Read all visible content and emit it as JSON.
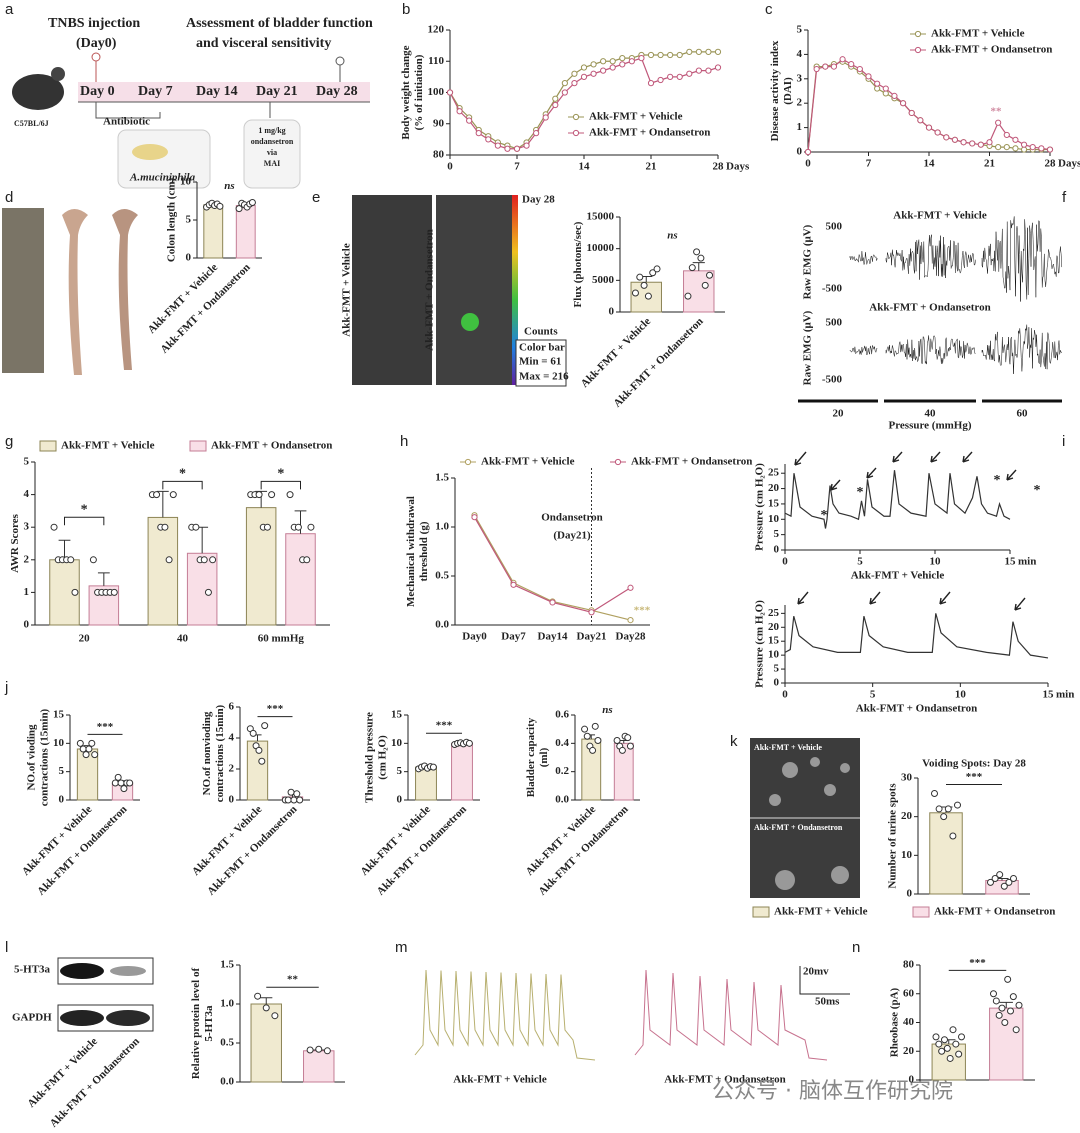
{
  "panel_letters": [
    "a",
    "b",
    "c",
    "d",
    "e",
    "f",
    "g",
    "h",
    "i",
    "j",
    "k",
    "l",
    "m",
    "n"
  ],
  "texts": {
    "a": [
      "TNBS injection",
      "(Day0)",
      "Assessment of bladder function",
      "and visceral sensitivity",
      "Day 0",
      "Day 7",
      "Day 14",
      "Day 21",
      "Day 28",
      "C57BL/6J",
      "Antibiotic",
      "A.muciniphila",
      "1 mg/kg",
      "ondansetron",
      "via",
      "MAI"
    ],
    "e": [
      "Akk-FMT + Vehicle",
      "Akk-FMT + Ondansetron",
      "Day 28",
      "Counts",
      "Color bar",
      "Min = 61",
      "Max = 216"
    ],
    "f": [
      "Akk-FMT + Vehicle",
      "Raw EMG (μV)",
      "500",
      "-500",
      "Akk-FMT + Ondansetron",
      "Raw EMG (μV)",
      "500",
      "-500",
      "20",
      "40",
      "60",
      "Pressure (mmHg)"
    ],
    "i": [
      "*",
      "*",
      "*",
      "*"
    ],
    "k": [
      "Akk-FMT + Vehicle",
      "Akk-FMT + Ondansetron"
    ],
    "l": [
      "5-HT3a",
      "GAPDH",
      "Akk-FMT + Vehicle",
      "Akk-FMT + Ondansetron"
    ],
    "m": [
      "20mv",
      "50ms",
      "Akk-FMT + Vehicle",
      "Akk-FMT + Ondansetron"
    ],
    "watermark": "公众号 · 脑体互作研究院"
  },
  "chart_data": [
    {
      "type": "line",
      "ylabel": [
        "Body weight change",
        "(% of initiation)"
      ],
      "xlabel": "Days",
      "x": [
        0,
        1,
        2,
        3,
        4,
        5,
        6,
        7,
        8,
        9,
        10,
        11,
        12,
        13,
        14,
        15,
        16,
        17,
        18,
        19,
        20,
        21,
        22,
        23,
        24,
        25,
        26,
        27,
        28
      ],
      "xlim": [
        0,
        28
      ],
      "xticks": [
        0,
        7,
        14,
        21,
        28
      ],
      "ylim": [
        80,
        120
      ],
      "yticks": [
        80,
        90,
        100,
        110,
        120
      ],
      "markers": true,
      "legend": "lower right",
      "series": [
        {
          "name": "Akk-FMT + Vehicle",
          "color": "#9a9456",
          "values": [
            100,
            95,
            92,
            88,
            86,
            84,
            83,
            82,
            84,
            88,
            93,
            98,
            103,
            106,
            108,
            109,
            110,
            110,
            111,
            111,
            112,
            112,
            112,
            112,
            112,
            113,
            113,
            113,
            113
          ]
        },
        {
          "name": "Akk-FMT + Ondansetron",
          "color": "#c0587a",
          "values": [
            100,
            94,
            91,
            87,
            85,
            83,
            82,
            82,
            83,
            87,
            92,
            96,
            100,
            103,
            105,
            106,
            107,
            108,
            109,
            110,
            111,
            103,
            104,
            105,
            105,
            106,
            107,
            107,
            108
          ]
        }
      ]
    },
    {
      "type": "line",
      "ylabel": [
        "Disease activity index",
        "(DAI)"
      ],
      "xlabel": "Days",
      "x": [
        0,
        1,
        2,
        3,
        4,
        5,
        6,
        7,
        8,
        9,
        10,
        11,
        12,
        13,
        14,
        15,
        16,
        17,
        18,
        19,
        20,
        21,
        22,
        23,
        24,
        25,
        26,
        27,
        28
      ],
      "xlim": [
        0,
        28
      ],
      "xticks": [
        0,
        7,
        14,
        21,
        28
      ],
      "ylim": [
        0,
        5
      ],
      "yticks": [
        0,
        1,
        2,
        3,
        4,
        5
      ],
      "markers": true,
      "legend": "upper right",
      "annotations": [
        "**"
      ],
      "series": [
        {
          "name": "Akk-FMT + Vehicle",
          "color": "#9a9456",
          "values": [
            0,
            3.5,
            3.5,
            3.6,
            3.7,
            3.5,
            3.3,
            3.0,
            2.6,
            2.4,
            2.2,
            2.0,
            1.6,
            1.3,
            1.0,
            0.8,
            0.6,
            0.5,
            0.4,
            0.35,
            0.3,
            0.25,
            0.2,
            0.2,
            0.15,
            0.1,
            0.1,
            0.1,
            0.1
          ]
        },
        {
          "name": "Akk-FMT + Ondansetron",
          "color": "#c0587a",
          "values": [
            0,
            3.4,
            3.5,
            3.5,
            3.8,
            3.6,
            3.4,
            3.1,
            2.8,
            2.6,
            2.3,
            2.0,
            1.6,
            1.3,
            1.0,
            0.8,
            0.6,
            0.5,
            0.4,
            0.35,
            0.3,
            0.4,
            1.2,
            0.7,
            0.5,
            0.3,
            0.2,
            0.15,
            0.1
          ]
        }
      ]
    },
    {
      "type": "bar",
      "ylabel": [
        "Colon length (cm)"
      ],
      "categories": [
        "Akk-FMT + Vehicle",
        "Akk-FMT + Ondansetron"
      ],
      "values": [
        7.0,
        6.9
      ],
      "errors": [
        0.15,
        0.2
      ],
      "points": [
        [
          6.7,
          7.0,
          7.2,
          6.9,
          7.1,
          6.8
        ],
        [
          6.5,
          7.2,
          7.0,
          6.7,
          7.1,
          7.3
        ]
      ],
      "ylim": [
        0,
        10
      ],
      "yticks": [
        0,
        5,
        10
      ],
      "significance": "ns",
      "colors": [
        "#f0ead0",
        "#f9dfe7"
      ],
      "edge_colors": [
        "#8c8455",
        "#c47d95"
      ]
    },
    {
      "type": "bar",
      "ylabel": [
        "Flux (photons/sec)"
      ],
      "categories": [
        "Akk-FMT + Vehicle",
        "Akk-FMT + Ondansetron"
      ],
      "values": [
        4700,
        6500
      ],
      "errors": [
        900,
        1300
      ],
      "points": [
        [
          3000,
          5500,
          4200,
          2500,
          6200,
          6800
        ],
        [
          2500,
          7000,
          9500,
          8500,
          4200,
          5800
        ]
      ],
      "ylim": [
        0,
        15000
      ],
      "yticks": [
        0,
        5000,
        10000,
        15000
      ],
      "significance": "ns",
      "colors": [
        "#f0ead0",
        "#f9dfe7"
      ],
      "edge_colors": [
        "#8c8455",
        "#c47d95"
      ]
    },
    {
      "type": "grouped_bar",
      "ylabel": [
        "AWR Scores"
      ],
      "categories": [
        "20",
        "40",
        "60 mmHg"
      ],
      "ylim": [
        0,
        5
      ],
      "yticks": [
        0,
        1,
        2,
        3,
        4,
        5
      ],
      "legend": "top",
      "significance": [
        "*",
        "*",
        "*"
      ],
      "series": [
        {
          "name": "Akk-FMT + Vehicle",
          "color": "#f0ead0",
          "edge_color": "#8c8455",
          "values": [
            2.0,
            3.3,
            3.6
          ],
          "errors": [
            0.6,
            0.8,
            0.5
          ],
          "points": [
            [
              3,
              2,
              2,
              2,
              2,
              1
            ],
            [
              4,
              4,
              3,
              3,
              2,
              4
            ],
            [
              4,
              4,
              4,
              3,
              3,
              4
            ]
          ]
        },
        {
          "name": "Akk-FMT + Ondansetron",
          "color": "#f9dfe7",
          "edge_color": "#c47d95",
          "values": [
            1.2,
            2.2,
            2.8
          ],
          "errors": [
            0.4,
            0.8,
            0.7
          ],
          "points": [
            [
              2,
              1,
              1,
              1,
              1,
              1
            ],
            [
              3,
              3,
              2,
              2,
              1,
              2
            ],
            [
              4,
              3,
              3,
              2,
              2,
              3
            ]
          ]
        }
      ]
    },
    {
      "type": "line",
      "ylabel": [
        "Mechanical withdrawal",
        "threshold (g)"
      ],
      "categories": [
        "Day0",
        "Day7",
        "Day14",
        "Day21",
        "Day28"
      ],
      "ylim": [
        0,
        1.5
      ],
      "yticks": [
        {
          "value": 0,
          "label": "0.0"
        },
        0.5,
        {
          "value": 1,
          "label": "1.0"
        },
        1.5
      ],
      "markers": true,
      "legend": "top",
      "vline_at": "Day21",
      "annotations": [
        "Ondansetron",
        "(Day21)",
        "***"
      ],
      "series": [
        {
          "name": "Akk-FMT + Vehicle",
          "color": "#b0a060",
          "values": [
            1.12,
            0.43,
            0.24,
            0.15,
            0.05
          ]
        },
        {
          "name": "Akk-FMT + Ondansetron",
          "color": "#c0587a",
          "values": [
            1.1,
            0.41,
            0.23,
            0.13,
            0.38
          ]
        }
      ]
    },
    {
      "type": "line",
      "ylabel": [
        "Pressure (cm H₂O)"
      ],
      "xlabel": "min",
      "caption": "Akk-FMT + Vehicle",
      "x": [
        0,
        0.4,
        0.6,
        1.0,
        1.8,
        2.6,
        2.7,
        2.8,
        3.0,
        3.2,
        3.6,
        4.4,
        4.9,
        5.1,
        5.3,
        5.5,
        5.8,
        6.6,
        7.0,
        7.3,
        7.6,
        8.4,
        9.4,
        9.6,
        10.0,
        10.8,
        11.0,
        11.3,
        12.0,
        12.5,
        12.8,
        13.1,
        13.5,
        14.1,
        14.3,
        14.6,
        15.0
      ],
      "xlim": [
        0,
        15
      ],
      "xticks": [
        0,
        5,
        10,
        15
      ],
      "ylim": [
        0,
        28
      ],
      "yticks": [
        0,
        5,
        10,
        15,
        20,
        25
      ],
      "series": [
        {
          "color": "#333333",
          "values": [
            12,
            11,
            25,
            14,
            11,
            10,
            7,
            10,
            21,
            15,
            12,
            11,
            10,
            16,
            11,
            23,
            14,
            11,
            11,
            26,
            15,
            12,
            11,
            25,
            15,
            12,
            25,
            15,
            12,
            17,
            24,
            15,
            12,
            11,
            15,
            11,
            10
          ]
        }
      ]
    },
    {
      "type": "line",
      "ylabel": [
        "Pressure (cm H₂O)"
      ],
      "xlabel": "min",
      "caption": "Akk-FMT + Ondansetron",
      "x": [
        0,
        0.3,
        0.5,
        0.8,
        1.6,
        3,
        4.3,
        4.5,
        4.8,
        5.6,
        7,
        8.4,
        8.6,
        8.9,
        9.8,
        11.5,
        12.8,
        13.0,
        13.3,
        14.0,
        15.0
      ],
      "xlim": [
        0,
        15
      ],
      "xticks": [
        0,
        5,
        10,
        15
      ],
      "ylim": [
        0,
        28
      ],
      "yticks": [
        0,
        5,
        10,
        15,
        20,
        25
      ],
      "series": [
        {
          "color": "#333333",
          "values": [
            11,
            12,
            24,
            17,
            13,
            11,
            11,
            24,
            17,
            13,
            11,
            11,
            25,
            18,
            13,
            11,
            10,
            22,
            15,
            10,
            9
          ]
        }
      ]
    },
    {
      "type": "bar",
      "ylabel": [
        "NO.of vioding",
        "contractions (15min)"
      ],
      "categories": [
        "Akk-FMT + Vehicle",
        "Akk-FMT + Ondansetron"
      ],
      "values": [
        9,
        3
      ],
      "errors": [
        0.6,
        0.4
      ],
      "points": [
        [
          10,
          9,
          8,
          9,
          10,
          8
        ],
        [
          3,
          4,
          3,
          2,
          3,
          3
        ]
      ],
      "ylim": [
        0,
        15
      ],
      "yticks": [
        0,
        5,
        10,
        15
      ],
      "significance": "***",
      "colors": [
        "#f0ead0",
        "#f9dfe7"
      ],
      "edge_colors": [
        "#8c8455",
        "#c47d95"
      ]
    },
    {
      "type": "bar",
      "ylabel": [
        "NO.of nonvioding",
        "contractions (15min)"
      ],
      "categories": [
        "Akk-FMT + Vehicle",
        "Akk-FMT + Ondansetron"
      ],
      "values": [
        3.8,
        0.2
      ],
      "errors": [
        0.4,
        0.15
      ],
      "points": [
        [
          4.6,
          4.3,
          3.5,
          3.2,
          2.5,
          4.8
        ],
        [
          0,
          0,
          0.5,
          0,
          0.4,
          0
        ]
      ],
      "ylim": [
        0,
        6
      ],
      "yticks": [
        0,
        2,
        4,
        6
      ],
      "significance": "***",
      "colors": [
        "#f0ead0",
        "#f9dfe7"
      ],
      "edge_colors": [
        "#8c8455",
        "#c47d95"
      ]
    },
    {
      "type": "bar",
      "ylabel": [
        "Threshold pressure",
        "(cm H₂O)"
      ],
      "categories": [
        "Akk-FMT + Vehicle",
        "Akk-FMT + Ondansetron"
      ],
      "values": [
        5.8,
        10
      ],
      "errors": [
        0.2,
        0.1
      ],
      "points": [
        [
          5.5,
          5.8,
          6,
          5.6,
          5.9,
          5.8
        ],
        [
          9.8,
          10,
          10.1,
          9.9,
          10.2,
          10
        ]
      ],
      "ylim": [
        0,
        15
      ],
      "yticks": [
        0,
        5,
        10,
        15
      ],
      "significance": "***",
      "colors": [
        "#f0ead0",
        "#f9dfe7"
      ],
      "edge_colors": [
        "#8c8455",
        "#c47d95"
      ]
    },
    {
      "type": "bar",
      "ylabel": [
        "Bladder capacity",
        "(ml)"
      ],
      "categories": [
        "Akk-FMT + Vehicle",
        "Akk-FMT + Ondansetron"
      ],
      "values": [
        0.43,
        0.4
      ],
      "errors": [
        0.03,
        0.02
      ],
      "points": [
        [
          0.5,
          0.45,
          0.38,
          0.35,
          0.52,
          0.42
        ],
        [
          0.42,
          0.38,
          0.35,
          0.45,
          0.44,
          0.38
        ]
      ],
      "ylim": [
        0,
        0.6
      ],
      "yticks": [
        {
          "value": 0,
          "label": "0.0"
        },
        0.2,
        0.4,
        0.6
      ],
      "significance": "ns",
      "colors": [
        "#f0ead0",
        "#f9dfe7"
      ],
      "edge_colors": [
        "#8c8455",
        "#c47d95"
      ]
    },
    {
      "type": "bar",
      "title": "Voiding Spots: Day 28",
      "ylabel": [
        "Number of urine spots"
      ],
      "categories": [
        "Akk-FMT + Vehicle",
        "Akk-FMT + Ondansetron"
      ],
      "legend": "bottom",
      "values": [
        21,
        3.5
      ],
      "errors": [
        1.5,
        0.5
      ],
      "points": [
        [
          26,
          22,
          20,
          22,
          15,
          23
        ],
        [
          3,
          4,
          5,
          2,
          3,
          4
        ]
      ],
      "ylim": [
        0,
        30
      ],
      "yticks": [
        0,
        10,
        20,
        30
      ],
      "significance": "***",
      "colors": [
        "#f0ead0",
        "#f9dfe7"
      ],
      "edge_colors": [
        "#8c8455",
        "#c47d95"
      ]
    },
    {
      "type": "bar",
      "ylabel": [
        "Relative protein level of",
        "5-HT3a"
      ],
      "categories": [
        null,
        null
      ],
      "values": [
        1.0,
        0.4
      ],
      "errors": [
        0.08,
        0.01
      ],
      "points": [
        [
          1.1,
          0.95,
          0.85
        ],
        [
          0.41,
          0.42,
          0.4
        ]
      ],
      "ylim": [
        0,
        1.5
      ],
      "yticks": [
        {
          "value": 0,
          "label": "0.0"
        },
        0.5,
        {
          "value": 1,
          "label": "1.0"
        },
        1.5
      ],
      "significance": "**",
      "colors": [
        "#f0ead0",
        "#f9dfe7"
      ],
      "edge_colors": [
        "#8c8455",
        "#c47d95"
      ]
    },
    {
      "type": "bar",
      "ylabel": [
        "Rheobase (pA)"
      ],
      "categories": [
        null,
        null
      ],
      "values": [
        25,
        50
      ],
      "errors": [
        3,
        4
      ],
      "points": [
        [
          30,
          25,
          20,
          28,
          22,
          15,
          35,
          25,
          18,
          30
        ],
        [
          60,
          55,
          45,
          50,
          40,
          70,
          48,
          58,
          35,
          52
        ]
      ],
      "ylim": [
        0,
        80
      ],
      "yticks": [
        0,
        20,
        40,
        60,
        80
      ],
      "significance": "***",
      "colors": [
        "#f0ead0",
        "#f9dfe7"
      ],
      "edge_colors": [
        "#8c8455",
        "#c47d95"
      ]
    }
  ]
}
